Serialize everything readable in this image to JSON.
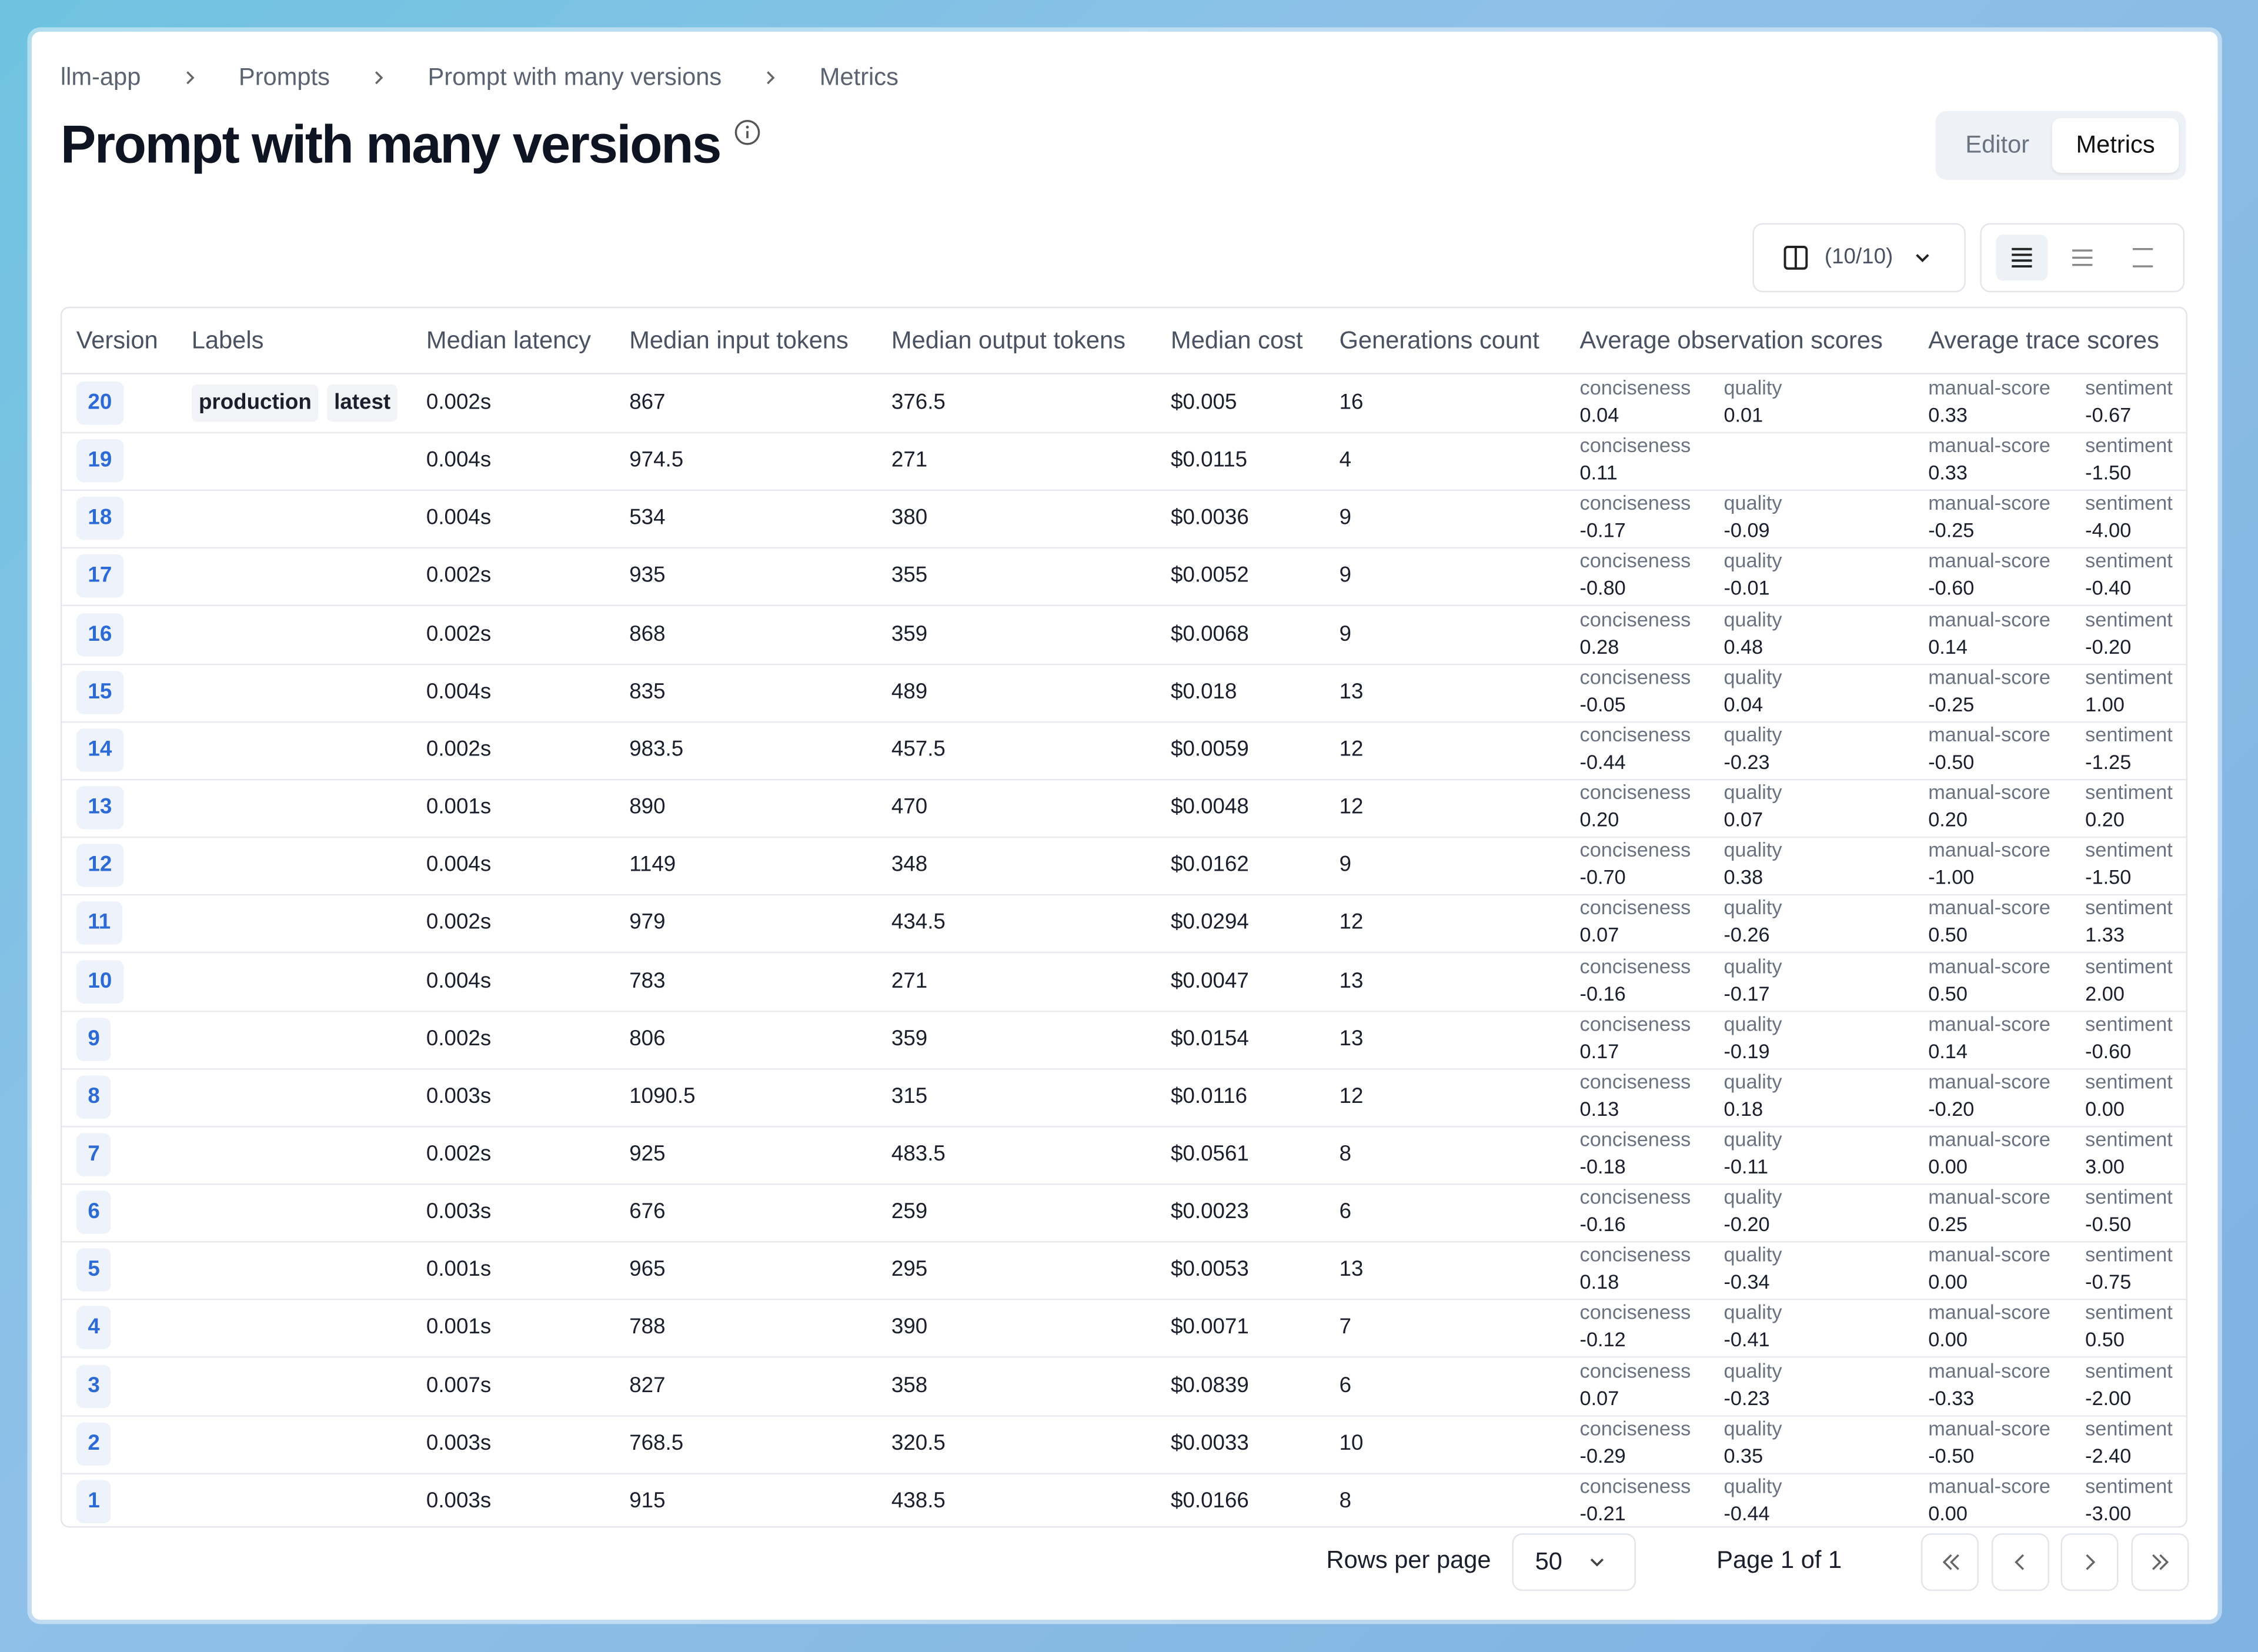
{
  "breadcrumbs": [
    "llm-app",
    "Prompts",
    "Prompt with many versions",
    "Metrics"
  ],
  "title": "Prompt with many versions",
  "tabs": [
    "Editor",
    "Metrics"
  ],
  "column_selector": "(10/10)",
  "table": {
    "headers": [
      "Version",
      "Labels",
      "Median latency",
      "Median input tokens",
      "Median output tokens",
      "Median cost",
      "Generations count",
      "Average observation scores",
      "Average trace scores"
    ],
    "rows": [
      [
        "20",
        [
          "production",
          "latest"
        ],
        "0.002s",
        "867",
        "376.5",
        "$0.005",
        "16",
        [
          [
            "conciseness",
            "0.04"
          ],
          [
            "quality",
            "0.01"
          ]
        ],
        [
          [
            "manual-score",
            "0.33"
          ],
          [
            "sentiment",
            "-0.67"
          ]
        ]
      ],
      [
        "19",
        [],
        "0.004s",
        "974.5",
        "271",
        "$0.0115",
        "4",
        [
          [
            "conciseness",
            "0.11"
          ]
        ],
        [
          [
            "manual-score",
            "0.33"
          ],
          [
            "sentiment",
            "-1.50"
          ]
        ]
      ],
      [
        "18",
        [],
        "0.004s",
        "534",
        "380",
        "$0.0036",
        "9",
        [
          [
            "conciseness",
            "-0.17"
          ],
          [
            "quality",
            "-0.09"
          ]
        ],
        [
          [
            "manual-score",
            "-0.25"
          ],
          [
            "sentiment",
            "-4.00"
          ]
        ]
      ],
      [
        "17",
        [],
        "0.002s",
        "935",
        "355",
        "$0.0052",
        "9",
        [
          [
            "conciseness",
            "-0.80"
          ],
          [
            "quality",
            "-0.01"
          ]
        ],
        [
          [
            "manual-score",
            "-0.60"
          ],
          [
            "sentiment",
            "-0.40"
          ]
        ]
      ],
      [
        "16",
        [],
        "0.002s",
        "868",
        "359",
        "$0.0068",
        "9",
        [
          [
            "conciseness",
            "0.28"
          ],
          [
            "quality",
            "0.48"
          ]
        ],
        [
          [
            "manual-score",
            "0.14"
          ],
          [
            "sentiment",
            "-0.20"
          ]
        ]
      ],
      [
        "15",
        [],
        "0.004s",
        "835",
        "489",
        "$0.018",
        "13",
        [
          [
            "conciseness",
            "-0.05"
          ],
          [
            "quality",
            "0.04"
          ]
        ],
        [
          [
            "manual-score",
            "-0.25"
          ],
          [
            "sentiment",
            "1.00"
          ]
        ]
      ],
      [
        "14",
        [],
        "0.002s",
        "983.5",
        "457.5",
        "$0.0059",
        "12",
        [
          [
            "conciseness",
            "-0.44"
          ],
          [
            "quality",
            "-0.23"
          ]
        ],
        [
          [
            "manual-score",
            "-0.50"
          ],
          [
            "sentiment",
            "-1.25"
          ]
        ]
      ],
      [
        "13",
        [],
        "0.001s",
        "890",
        "470",
        "$0.0048",
        "12",
        [
          [
            "conciseness",
            "0.20"
          ],
          [
            "quality",
            "0.07"
          ]
        ],
        [
          [
            "manual-score",
            "0.20"
          ],
          [
            "sentiment",
            "0.20"
          ]
        ]
      ],
      [
        "12",
        [],
        "0.004s",
        "1149",
        "348",
        "$0.0162",
        "9",
        [
          [
            "conciseness",
            "-0.70"
          ],
          [
            "quality",
            "0.38"
          ]
        ],
        [
          [
            "manual-score",
            "-1.00"
          ],
          [
            "sentiment",
            "-1.50"
          ]
        ]
      ],
      [
        "11",
        [],
        "0.002s",
        "979",
        "434.5",
        "$0.0294",
        "12",
        [
          [
            "conciseness",
            "0.07"
          ],
          [
            "quality",
            "-0.26"
          ]
        ],
        [
          [
            "manual-score",
            "0.50"
          ],
          [
            "sentiment",
            "1.33"
          ]
        ]
      ],
      [
        "10",
        [],
        "0.004s",
        "783",
        "271",
        "$0.0047",
        "13",
        [
          [
            "conciseness",
            "-0.16"
          ],
          [
            "quality",
            "-0.17"
          ]
        ],
        [
          [
            "manual-score",
            "0.50"
          ],
          [
            "sentiment",
            "2.00"
          ]
        ]
      ],
      [
        "9",
        [],
        "0.002s",
        "806",
        "359",
        "$0.0154",
        "13",
        [
          [
            "conciseness",
            "0.17"
          ],
          [
            "quality",
            "-0.19"
          ]
        ],
        [
          [
            "manual-score",
            "0.14"
          ],
          [
            "sentiment",
            "-0.60"
          ]
        ]
      ],
      [
        "8",
        [],
        "0.003s",
        "1090.5",
        "315",
        "$0.0116",
        "12",
        [
          [
            "conciseness",
            "0.13"
          ],
          [
            "quality",
            "0.18"
          ]
        ],
        [
          [
            "manual-score",
            "-0.20"
          ],
          [
            "sentiment",
            "0.00"
          ]
        ]
      ],
      [
        "7",
        [],
        "0.002s",
        "925",
        "483.5",
        "$0.0561",
        "8",
        [
          [
            "conciseness",
            "-0.18"
          ],
          [
            "quality",
            "-0.11"
          ]
        ],
        [
          [
            "manual-score",
            "0.00"
          ],
          [
            "sentiment",
            "3.00"
          ]
        ]
      ],
      [
        "6",
        [],
        "0.003s",
        "676",
        "259",
        "$0.0023",
        "6",
        [
          [
            "conciseness",
            "-0.16"
          ],
          [
            "quality",
            "-0.20"
          ]
        ],
        [
          [
            "manual-score",
            "0.25"
          ],
          [
            "sentiment",
            "-0.50"
          ]
        ]
      ],
      [
        "5",
        [],
        "0.001s",
        "965",
        "295",
        "$0.0053",
        "13",
        [
          [
            "conciseness",
            "0.18"
          ],
          [
            "quality",
            "-0.34"
          ]
        ],
        [
          [
            "manual-score",
            "0.00"
          ],
          [
            "sentiment",
            "-0.75"
          ]
        ]
      ],
      [
        "4",
        [],
        "0.001s",
        "788",
        "390",
        "$0.0071",
        "7",
        [
          [
            "conciseness",
            "-0.12"
          ],
          [
            "quality",
            "-0.41"
          ]
        ],
        [
          [
            "manual-score",
            "0.00"
          ],
          [
            "sentiment",
            "0.50"
          ]
        ]
      ],
      [
        "3",
        [],
        "0.007s",
        "827",
        "358",
        "$0.0839",
        "6",
        [
          [
            "conciseness",
            "0.07"
          ],
          [
            "quality",
            "-0.23"
          ]
        ],
        [
          [
            "manual-score",
            "-0.33"
          ],
          [
            "sentiment",
            "-2.00"
          ]
        ]
      ],
      [
        "2",
        [],
        "0.003s",
        "768.5",
        "320.5",
        "$0.0033",
        "10",
        [
          [
            "conciseness",
            "-0.29"
          ],
          [
            "quality",
            "0.35"
          ]
        ],
        [
          [
            "manual-score",
            "-0.50"
          ],
          [
            "sentiment",
            "-2.40"
          ]
        ]
      ],
      [
        "1",
        [],
        "0.003s",
        "915",
        "438.5",
        "$0.0166",
        "8",
        [
          [
            "conciseness",
            "-0.21"
          ],
          [
            "quality",
            "-0.44"
          ]
        ],
        [
          [
            "manual-score",
            "0.00"
          ],
          [
            "sentiment",
            "-3.00"
          ]
        ]
      ]
    ]
  },
  "pagination": {
    "rows_per_page_label": "Rows per page",
    "rows_per_page": "50",
    "page_label": "Page 1 of 1"
  }
}
